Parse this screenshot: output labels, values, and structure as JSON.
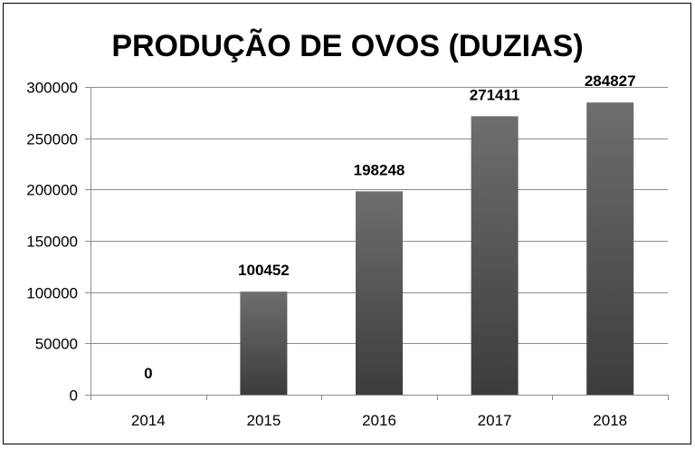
{
  "chart_data": {
    "type": "bar",
    "title": "PRODUÇÃO DE OVOS (DUZIAS)",
    "xlabel": "",
    "ylabel": "",
    "categories": [
      "2014",
      "2015",
      "2016",
      "2017",
      "2018"
    ],
    "values": [
      0,
      100452,
      198248,
      271411,
      284827
    ],
    "data_labels": [
      "0",
      "100452",
      "198248",
      "271411",
      "284827"
    ],
    "ylim": [
      0,
      300000
    ],
    "yticks": [
      0,
      50000,
      100000,
      150000,
      200000,
      250000,
      300000
    ],
    "ytick_labels": [
      "0",
      "50000",
      "100000",
      "150000",
      "200000",
      "250000",
      "300000"
    ],
    "grid": true,
    "legend": "none",
    "colors": {
      "bar_top": "#6e6e6e",
      "bar_bottom": "#3c3c3c",
      "grid": "#8c8c8c",
      "axis": "#8c8c8c",
      "border": "#000000"
    }
  }
}
